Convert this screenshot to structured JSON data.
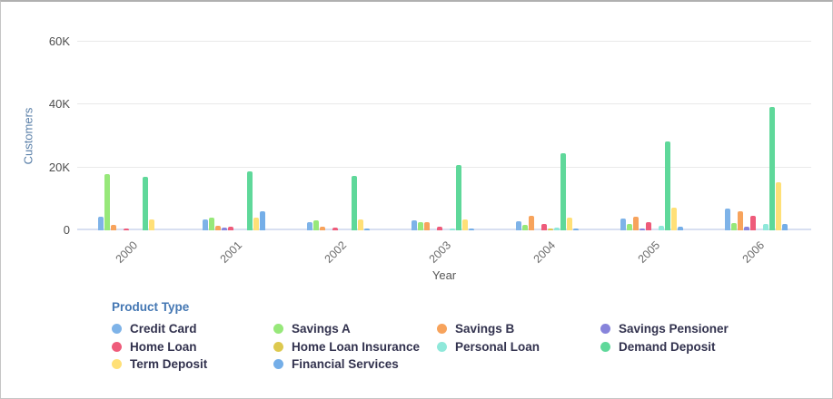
{
  "chart_data": {
    "type": "bar",
    "title": "",
    "xlabel": "Year",
    "ylabel": "Customers",
    "ylim": [
      0,
      60000
    ],
    "grid": true,
    "legend_title": "Product Type",
    "legend_position": "bottom",
    "yticks": [
      {
        "value": 0,
        "label": "0"
      },
      {
        "value": 20000,
        "label": "20K"
      },
      {
        "value": 40000,
        "label": "40K"
      },
      {
        "value": 60000,
        "label": "60K"
      }
    ],
    "categories": [
      "2000",
      "2001",
      "2002",
      "2003",
      "2004",
      "2005",
      "2006"
    ],
    "series": [
      {
        "name": "Credit Card",
        "color": "#7EB3E8",
        "values": [
          4300,
          3500,
          2600,
          3200,
          2900,
          3800,
          6900
        ]
      },
      {
        "name": "Savings A",
        "color": "#97E87A",
        "values": [
          18000,
          4000,
          3200,
          2600,
          1800,
          2000,
          2300
        ]
      },
      {
        "name": "Savings B",
        "color": "#F7A35C",
        "values": [
          1700,
          1400,
          1200,
          2600,
          4600,
          4300,
          6100
        ]
      },
      {
        "name": "Savings Pensioner",
        "color": "#8784DB",
        "values": [
          0,
          900,
          0,
          0,
          0,
          600,
          1200
        ]
      },
      {
        "name": "Home Loan",
        "color": "#EE5B7A",
        "values": [
          500,
          1200,
          900,
          1200,
          2000,
          2600,
          4600
        ]
      },
      {
        "name": "Home Loan Insurance",
        "color": "#DDC94F",
        "values": [
          0,
          0,
          0,
          0,
          600,
          0,
          0
        ]
      },
      {
        "name": "Personal Loan",
        "color": "#8FE8DA",
        "values": [
          0,
          0,
          0,
          600,
          900,
          1400,
          2000
        ]
      },
      {
        "name": "Demand Deposit",
        "color": "#5FD89A",
        "values": [
          17000,
          18800,
          17300,
          20800,
          24600,
          28300,
          39300
        ]
      },
      {
        "name": "Term Deposit",
        "color": "#FFE077",
        "values": [
          3600,
          4000,
          3500,
          3500,
          4000,
          7200,
          15300
        ]
      },
      {
        "name": "Financial Services",
        "color": "#74AEE8",
        "values": [
          0,
          6000,
          600,
          600,
          700,
          1200,
          2000
        ]
      }
    ]
  },
  "layout_colors": {
    "gridline": "#e9e9e9",
    "baseline": "#d8dff1",
    "y_title": "#5b80a9",
    "legend_title": "#4477b3",
    "legend_text": "#32324e",
    "tick_text": "#4d4d4d"
  }
}
